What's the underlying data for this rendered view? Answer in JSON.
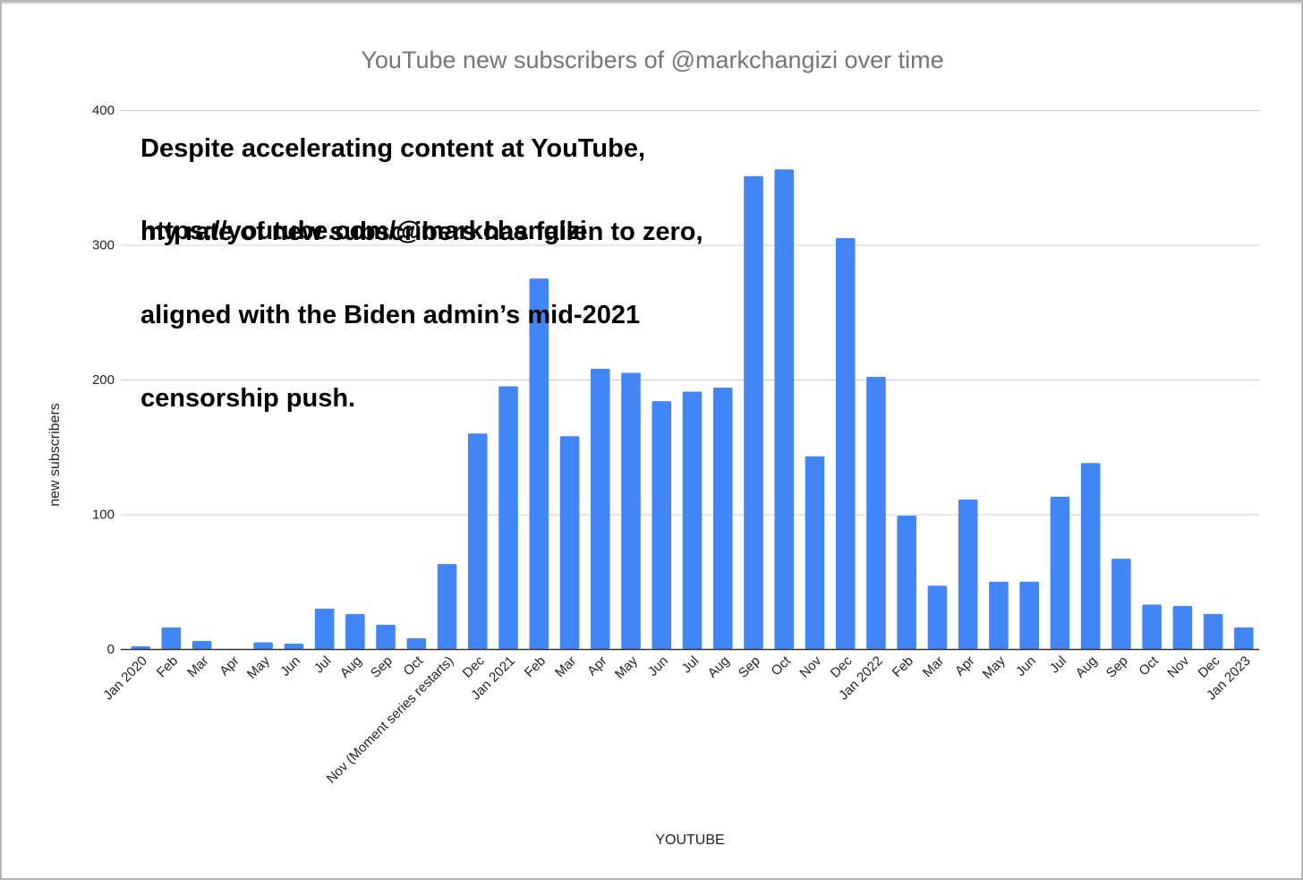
{
  "chart_data": {
    "type": "bar",
    "title": "YouTube new subscribers of @markchangizi over time",
    "xlabel": "YOUTUBE",
    "ylabel": "new subscribers",
    "ylim": [
      0,
      400
    ],
    "yticks": [
      0,
      100,
      200,
      300,
      400
    ],
    "grid": true,
    "legend": "none",
    "bar_color": "#4285f4",
    "categories": [
      "Jan 2020",
      "Feb",
      "Mar",
      "Apr",
      "May",
      "Jun",
      "Jul",
      "Aug",
      "Sep",
      "Oct",
      "Nov (Moment series restarts)",
      "Dec",
      "Jan 2021",
      "Feb",
      "Mar",
      "Apr",
      "May",
      "Jun",
      "Jul",
      "Aug",
      "Sep",
      "Oct",
      "Nov",
      "Dec",
      "Jan 2022",
      "Feb",
      "Mar",
      "Apr",
      "May",
      "Jun",
      "Jul",
      "Aug",
      "Sep",
      "Oct",
      "Nov",
      "Dec",
      "Jan 2023"
    ],
    "values": [
      2,
      16,
      6,
      0,
      5,
      4,
      30,
      26,
      18,
      8,
      63,
      160,
      195,
      275,
      158,
      208,
      205,
      184,
      191,
      194,
      351,
      356,
      143,
      305,
      202,
      99,
      47,
      111,
      50,
      50,
      113,
      138,
      67,
      33,
      32,
      26,
      16
    ],
    "annotation": {
      "lines": [
        "Despite accelerating content at YouTube,",
        "my rate of new subscribers has fallen to zero,",
        "aligned with the Biden admin’s mid-2021",
        "censorship push."
      ],
      "url": "https://youtube.com/@markchangizi"
    }
  }
}
